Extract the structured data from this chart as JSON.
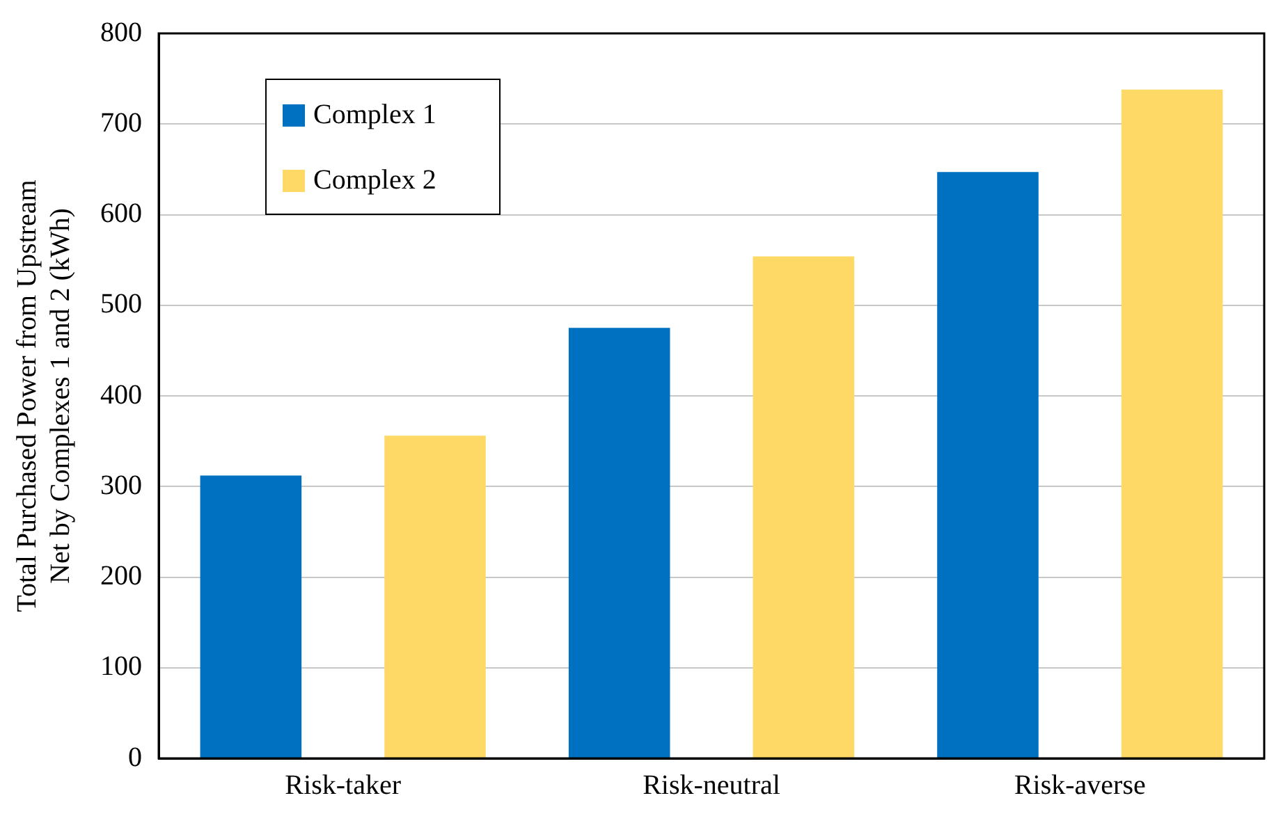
{
  "chart_data": {
    "type": "bar",
    "ylabel": "Total Purchased Power from Upstream\nNet by Complexes 1 and 2 (kWh)",
    "categories": [
      "Risk-taker",
      "Risk-neutral",
      "Risk-averse"
    ],
    "series": [
      {
        "name": "Complex 1",
        "color": "#0070c0",
        "values": [
          312,
          475,
          647
        ]
      },
      {
        "name": "Complex 2",
        "color": "#ffd966",
        "values": [
          356,
          554,
          738
        ]
      }
    ],
    "ylim": [
      0,
      800
    ],
    "yticks": [
      0,
      100,
      200,
      300,
      400,
      500,
      600,
      700,
      800
    ],
    "grid": "y",
    "legend": "top left"
  }
}
